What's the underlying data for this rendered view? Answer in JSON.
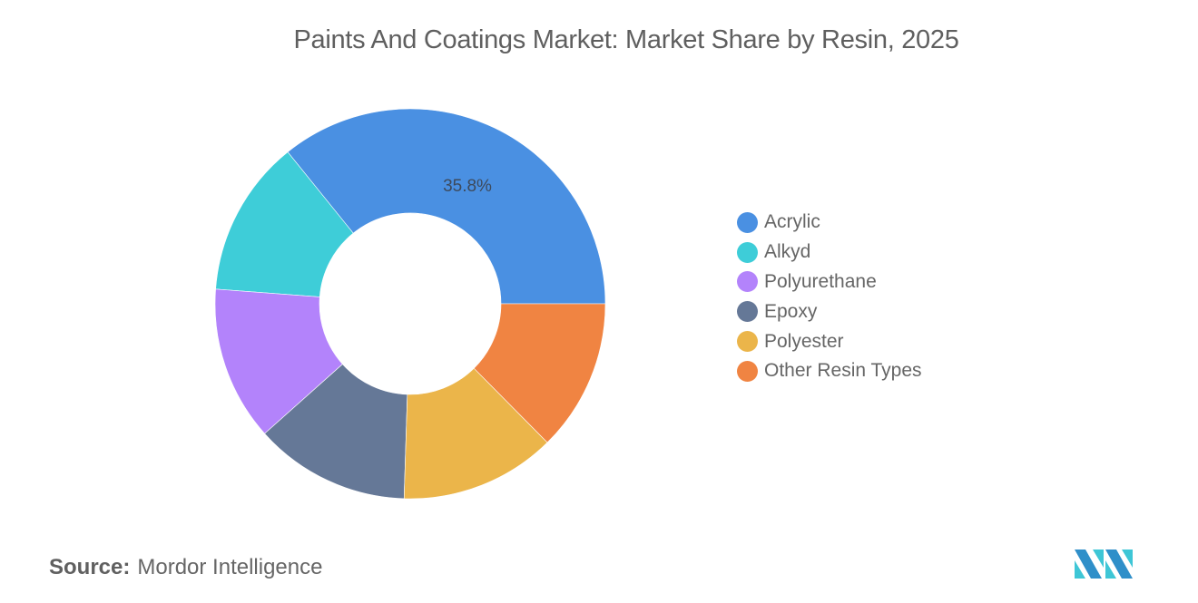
{
  "title": "Paints And Coatings Market: Market Share by Resin, 2025",
  "source": {
    "label": "Source:",
    "value": "Mordor Intelligence"
  },
  "logo": "mordor-intelligence-logo",
  "legend": [
    {
      "label": "Acrylic",
      "color": "#4a90e2"
    },
    {
      "label": "Alkyd",
      "color": "#3ecdd8"
    },
    {
      "label": "Polyurethane",
      "color": "#b383fb"
    },
    {
      "label": "Epoxy",
      "color": "#657897"
    },
    {
      "label": "Polyester",
      "color": "#ebb54a"
    },
    {
      "label": "Other Resin Types",
      "color": "#f08442"
    }
  ],
  "data_label": "35.8%",
  "chart_data": {
    "type": "pie",
    "variant": "donut",
    "title": "Paints And Coatings Market: Market Share by Resin, 2025",
    "categories": [
      "Acrylic",
      "Alkyd",
      "Polyurethane",
      "Epoxy",
      "Polyester",
      "Other Resin Types"
    ],
    "values": [
      35.8,
      13.0,
      12.8,
      12.9,
      12.9,
      12.6
    ],
    "unit": "%",
    "labeled_values": {
      "Acrylic": "35.8%"
    },
    "colors": [
      "#4a90e2",
      "#3ecdd8",
      "#b383fb",
      "#657897",
      "#ebb54a",
      "#f08442"
    ],
    "legend_position": "right",
    "source": "Mordor Intelligence"
  }
}
